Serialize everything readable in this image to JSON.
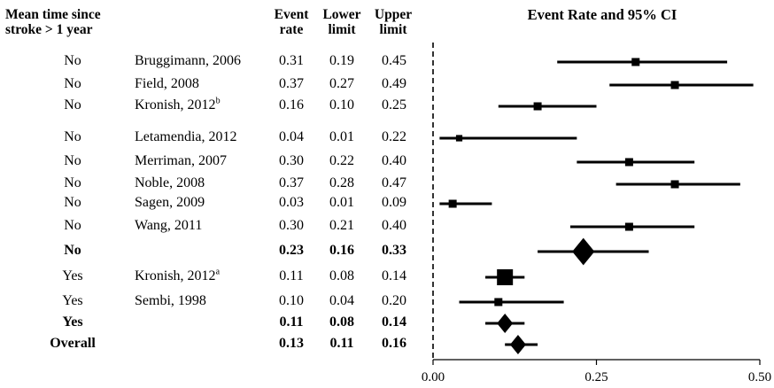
{
  "headers": {
    "group_line1": "Mean time since",
    "group_line2": "stroke > 1 year",
    "event_line1": "Event",
    "event_line2": "rate",
    "lower_line1": "Lower",
    "lower_line2": "limit",
    "upper_line1": "Upper",
    "upper_line2": "limit",
    "chart_title": "Event Rate and 95% CI"
  },
  "chart_data": {
    "type": "forest",
    "title": "Event Rate and 95% CI",
    "xlim": [
      0,
      0.5
    ],
    "xticks": [
      "0.00",
      "0.25",
      "0.50"
    ],
    "rows": [
      {
        "group": "No",
        "study": "Bruggimann,  2006",
        "sup": "",
        "rate": 0.31,
        "lower": 0.19,
        "upper": 0.45,
        "rate_label": "0.31",
        "lower_label": "0.19",
        "upper_label": "0.45",
        "kind": "study",
        "weight": 1.0,
        "bold": false
      },
      {
        "group": "No",
        "study": "Field, 2008",
        "sup": "",
        "rate": 0.37,
        "lower": 0.27,
        "upper": 0.49,
        "rate_label": "0.37",
        "lower_label": "0.27",
        "upper_label": "0.49",
        "kind": "study",
        "weight": 1.0,
        "bold": false
      },
      {
        "group": "No",
        "study": "Kronish, 2012",
        "sup": "b",
        "rate": 0.16,
        "lower": 0.1,
        "upper": 0.25,
        "rate_label": "0.16",
        "lower_label": "0.10",
        "upper_label": "0.25",
        "kind": "study",
        "weight": 1.0,
        "bold": false
      },
      {
        "group": "No",
        "study": "Letamendia, 2012",
        "sup": "",
        "rate": 0.04,
        "lower": 0.01,
        "upper": 0.22,
        "rate_label": "0.04",
        "lower_label": "0.01",
        "upper_label": "0.22",
        "kind": "study",
        "weight": 0.8,
        "bold": false
      },
      {
        "group": "No",
        "study": "Merriman,  2007",
        "sup": "",
        "rate": 0.3,
        "lower": 0.22,
        "upper": 0.4,
        "rate_label": "0.30",
        "lower_label": "0.22",
        "upper_label": "0.40",
        "kind": "study",
        "weight": 1.0,
        "bold": false
      },
      {
        "group": "No",
        "study": "Noble, 2008",
        "sup": "",
        "rate": 0.37,
        "lower": 0.28,
        "upper": 0.47,
        "rate_label": "0.37",
        "lower_label": "0.28",
        "upper_label": "0.47",
        "kind": "study",
        "weight": 1.0,
        "bold": false
      },
      {
        "group": "No",
        "study": "Sagen, 2009",
        "sup": "",
        "rate": 0.03,
        "lower": 0.01,
        "upper": 0.09,
        "rate_label": "0.03",
        "lower_label": "0.01",
        "upper_label": "0.09",
        "kind": "study",
        "weight": 1.0,
        "bold": false
      },
      {
        "group": "No",
        "study": "Wang, 2011",
        "sup": "",
        "rate": 0.3,
        "lower": 0.21,
        "upper": 0.4,
        "rate_label": "0.30",
        "lower_label": "0.21",
        "upper_label": "0.40",
        "kind": "study",
        "weight": 1.0,
        "bold": false
      },
      {
        "group": "No",
        "study": "",
        "sup": "",
        "rate": 0.23,
        "lower": 0.16,
        "upper": 0.33,
        "rate_label": "0.23",
        "lower_label": "0.16",
        "upper_label": "0.33",
        "kind": "summary",
        "weight": 1.4,
        "bold": true
      },
      {
        "group": "Yes",
        "study": "Kronish, 2012",
        "sup": "a",
        "rate": 0.11,
        "lower": 0.08,
        "upper": 0.14,
        "rate_label": "0.11",
        "lower_label": "0.08",
        "upper_label": "0.14",
        "kind": "study",
        "weight": 2.0,
        "bold": false
      },
      {
        "group": "Yes",
        "study": "Sembi, 1998",
        "sup": "",
        "rate": 0.1,
        "lower": 0.04,
        "upper": 0.2,
        "rate_label": "0.10",
        "lower_label": "0.04",
        "upper_label": "0.20",
        "kind": "study",
        "weight": 1.0,
        "bold": false
      },
      {
        "group": "Yes",
        "study": "",
        "sup": "",
        "rate": 0.11,
        "lower": 0.08,
        "upper": 0.14,
        "rate_label": "0.11",
        "lower_label": "0.08",
        "upper_label": "0.14",
        "kind": "summary",
        "weight": 1.0,
        "bold": true
      },
      {
        "group": "Overall",
        "study": "",
        "sup": "",
        "rate": 0.13,
        "lower": 0.11,
        "upper": 0.16,
        "rate_label": "0.13",
        "lower_label": "0.11",
        "upper_label": "0.16",
        "kind": "summary",
        "weight": 1.0,
        "bold": true
      }
    ]
  }
}
